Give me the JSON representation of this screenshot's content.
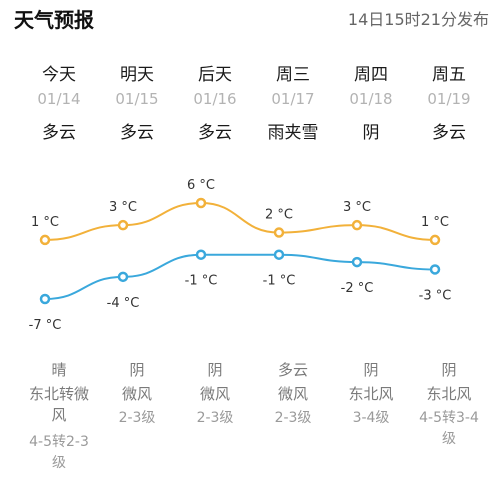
{
  "header": {
    "title": "天气预报",
    "publish_time": "14日15时21分发布"
  },
  "days": [
    {
      "day": "今天",
      "date": "01/14",
      "cond": "多云",
      "high": 1,
      "low": -7,
      "night_cond": "晴",
      "wind_dir": "东北转微风",
      "wind_level": "4-5转2-3级"
    },
    {
      "day": "明天",
      "date": "01/15",
      "cond": "多云",
      "high": 3,
      "low": -4,
      "night_cond": "阴",
      "wind_dir": "微风",
      "wind_level": "2-3级"
    },
    {
      "day": "后天",
      "date": "01/16",
      "cond": "多云",
      "high": 6,
      "low": -1,
      "night_cond": "阴",
      "wind_dir": "微风",
      "wind_level": "2-3级"
    },
    {
      "day": "周三",
      "date": "01/17",
      "cond": "雨夹雪",
      "high": 2,
      "low": -1,
      "night_cond": "多云",
      "wind_dir": "微风",
      "wind_level": "2-3级"
    },
    {
      "day": "周四",
      "date": "01/18",
      "cond": "阴",
      "high": 3,
      "low": -2,
      "night_cond": "阴",
      "wind_dir": "东北风",
      "wind_level": "3-4级"
    },
    {
      "day": "周五",
      "date": "01/19",
      "cond": "多云",
      "high": 1,
      "low": -3,
      "night_cond": "阴",
      "wind_dir": "东北风",
      "wind_level": "4-5转3-4级"
    }
  ],
  "temp_unit": "°C",
  "colors": {
    "high_line": "#f2b13a",
    "low_line": "#3aa8dc"
  }
}
